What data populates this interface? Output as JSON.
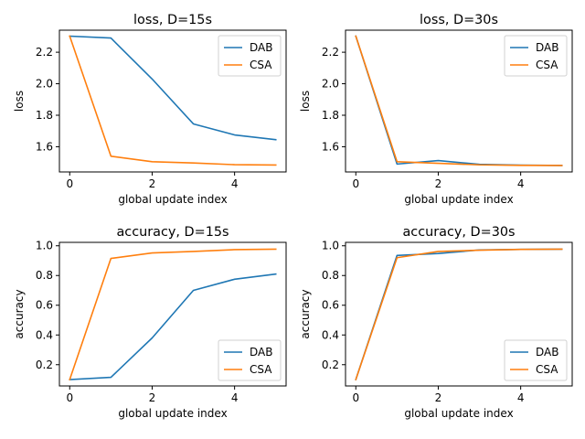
{
  "colors": {
    "DAB": "#1f77b4",
    "CSA": "#ff7f0e"
  },
  "chart_data": [
    {
      "type": "line",
      "title": "loss, D=15s",
      "xlabel": "global update index",
      "ylabel": "loss",
      "x": [
        0,
        1,
        2,
        3,
        4,
        5
      ],
      "xlim": [
        -0.25,
        5.25
      ],
      "ylim": [
        1.44,
        2.34
      ],
      "xticks": [
        0,
        2,
        4
      ],
      "yticks": [
        1.6,
        1.8,
        2.0,
        2.2
      ],
      "xtick_labels": [
        "0",
        "2",
        "4"
      ],
      "ytick_labels": [
        "1.6",
        "1.8",
        "2.0",
        "2.2"
      ],
      "legend_position": "upper-right",
      "series": [
        {
          "name": "DAB",
          "color": "#1f77b4",
          "values": [
            2.302,
            2.29,
            2.03,
            1.745,
            1.675,
            1.645
          ]
        },
        {
          "name": "CSA",
          "color": "#ff7f0e",
          "values": [
            2.302,
            1.54,
            1.505,
            1.497,
            1.486,
            1.484
          ]
        }
      ]
    },
    {
      "type": "line",
      "title": "loss, D=30s",
      "xlabel": "global update index",
      "ylabel": "loss",
      "x": [
        0,
        1,
        2,
        3,
        4,
        5
      ],
      "xlim": [
        -0.25,
        5.25
      ],
      "ylim": [
        1.44,
        2.34
      ],
      "xticks": [
        0,
        2,
        4
      ],
      "yticks": [
        1.6,
        1.8,
        2.0,
        2.2
      ],
      "xtick_labels": [
        "0",
        "2",
        "4"
      ],
      "ytick_labels": [
        "1.6",
        "1.8",
        "2.0",
        "2.2"
      ],
      "legend_position": "upper-right",
      "series": [
        {
          "name": "DAB",
          "color": "#1f77b4",
          "values": [
            2.302,
            1.49,
            1.512,
            1.488,
            1.483,
            1.481
          ]
        },
        {
          "name": "CSA",
          "color": "#ff7f0e",
          "values": [
            2.302,
            1.505,
            1.495,
            1.485,
            1.482,
            1.481
          ]
        }
      ]
    },
    {
      "type": "line",
      "title": "accuracy, D=15s",
      "xlabel": "global update index",
      "ylabel": "accuracy",
      "x": [
        0,
        1,
        2,
        3,
        4,
        5
      ],
      "xlim": [
        -0.25,
        5.25
      ],
      "ylim": [
        0.057,
        1.023
      ],
      "xticks": [
        0,
        2,
        4
      ],
      "yticks": [
        0.2,
        0.4,
        0.6,
        0.8,
        1.0
      ],
      "xtick_labels": [
        "0",
        "2",
        "4"
      ],
      "ytick_labels": [
        "0.2",
        "0.4",
        "0.6",
        "0.8",
        "1.0"
      ],
      "legend_position": "lower-right",
      "series": [
        {
          "name": "DAB",
          "color": "#1f77b4",
          "values": [
            0.1,
            0.115,
            0.38,
            0.7,
            0.775,
            0.81
          ]
        },
        {
          "name": "CSA",
          "color": "#ff7f0e",
          "values": [
            0.1,
            0.915,
            0.952,
            0.962,
            0.974,
            0.977
          ]
        }
      ]
    },
    {
      "type": "line",
      "title": "accuracy, D=30s",
      "xlabel": "global update index",
      "ylabel": "accuracy",
      "x": [
        0,
        1,
        2,
        3,
        4,
        5
      ],
      "xlim": [
        -0.25,
        5.25
      ],
      "ylim": [
        0.057,
        1.023
      ],
      "xticks": [
        0,
        2,
        4
      ],
      "yticks": [
        0.2,
        0.4,
        0.6,
        0.8,
        1.0
      ],
      "xtick_labels": [
        "0",
        "2",
        "4"
      ],
      "ytick_labels": [
        "0.2",
        "0.4",
        "0.6",
        "0.8",
        "1.0"
      ],
      "legend_position": "lower-right",
      "series": [
        {
          "name": "DAB",
          "color": "#1f77b4",
          "values": [
            0.1,
            0.935,
            0.948,
            0.972,
            0.976,
            0.977
          ]
        },
        {
          "name": "CSA",
          "color": "#ff7f0e",
          "values": [
            0.1,
            0.92,
            0.962,
            0.97,
            0.976,
            0.977
          ]
        }
      ]
    }
  ]
}
